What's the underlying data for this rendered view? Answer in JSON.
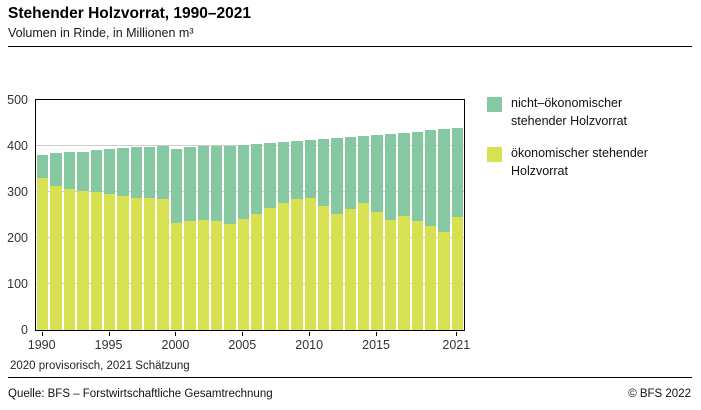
{
  "header": {
    "title": "Stehender Holzvorrat, 1990–2021",
    "subtitle": "Volumen in Rinde, in Millionen m³"
  },
  "footnote": "2020 provisorisch, 2021 Schätzung",
  "footer": {
    "source": "Quelle: BFS – Forstwirtschaftliche Gesamtrechnung",
    "copyright": "© BFS 2022"
  },
  "chart_data": {
    "type": "bar",
    "stacked": true,
    "title": "Stehender Holzvorrat, 1990–2021",
    "ylabel": "Volumen in Rinde, in Millionen m³",
    "categories": [
      1990,
      1991,
      1992,
      1993,
      1994,
      1995,
      1996,
      1997,
      1998,
      1999,
      2000,
      2001,
      2002,
      2003,
      2004,
      2005,
      2006,
      2007,
      2008,
      2009,
      2010,
      2011,
      2012,
      2013,
      2014,
      2015,
      2016,
      2017,
      2018,
      2019,
      2020,
      2021
    ],
    "series": [
      {
        "name": "ökonomischer stehender Holzvorrat",
        "color": "#d8e152",
        "values": [
          330,
          312,
          306,
          302,
          300,
          296,
          291,
          288,
          286,
          285,
          232,
          236,
          240,
          236,
          231,
          242,
          252,
          265,
          276,
          284,
          287,
          270,
          252,
          262,
          277,
          257,
          240,
          247,
          237,
          227,
          212,
          245
        ]
      },
      {
        "name": "nicht–ökonomischer stehender Holzvorrat",
        "color": "#85c8a2",
        "values": [
          51,
          72,
          80,
          86,
          91,
          97,
          104,
          109,
          112,
          114,
          162,
          161,
          159,
          164,
          170,
          160,
          152,
          141,
          132,
          127,
          126,
          146,
          166,
          158,
          145,
          167,
          186,
          182,
          194,
          207,
          224,
          194
        ]
      }
    ],
    "ylim": [
      0,
      500
    ],
    "yticks": [
      0,
      100,
      200,
      300,
      400,
      500
    ],
    "xticks": [
      1990,
      1995,
      2000,
      2005,
      2010,
      2015,
      2021
    ],
    "grid": true,
    "legend_position": "right-top",
    "gridline_color": "#cccccc",
    "axis_text_color": "#333333"
  }
}
